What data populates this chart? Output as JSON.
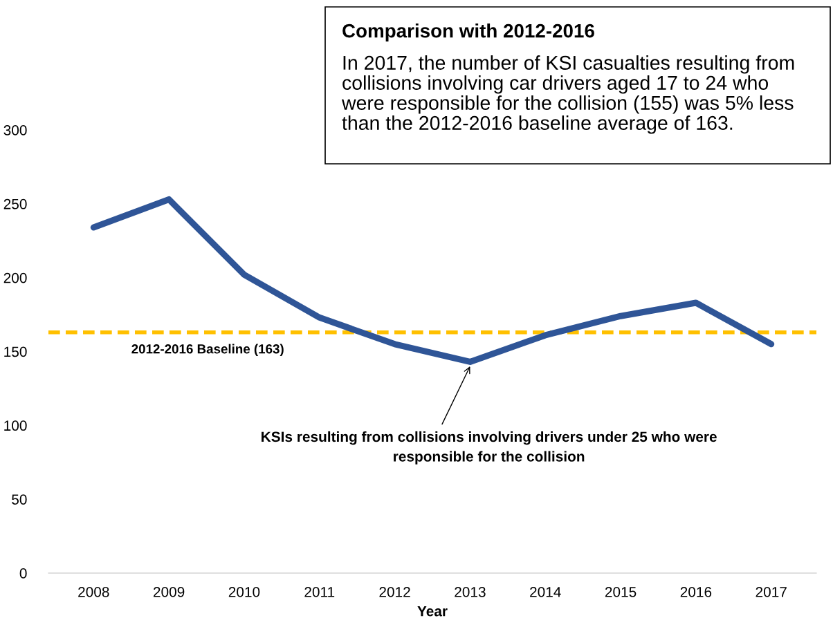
{
  "chart_data": {
    "type": "line",
    "categories": [
      "2008",
      "2009",
      "2010",
      "2011",
      "2012",
      "2013",
      "2014",
      "2015",
      "2016",
      "2017"
    ],
    "series": [
      {
        "color": "#2f5597",
        "values": [
          234,
          253,
          202,
          173,
          155,
          143,
          161,
          174,
          183,
          155
        ]
      }
    ],
    "xlabel": "Year",
    "ylim": [
      0,
      300
    ],
    "yticks": [
      0,
      50,
      100,
      150,
      200,
      250,
      300
    ],
    "grid": false,
    "marker": "none",
    "line_style": "solid",
    "ref_lines": [
      {
        "axis": "y",
        "value": 163,
        "label": "2012-2016 Baseline (163)",
        "color": "#ffc000",
        "line_style": "dashed"
      }
    ],
    "annotations": [
      {
        "text": "KSIs resulting from collisions involving drivers under 25 who were\nresponsible for the collision",
        "x": "2013",
        "y": 143
      },
      "Comparison with 2012-2016",
      "In 2017, the number of KSI casualties resulting from\ncollisions involving car drivers aged 17 to 24 who\nwere responsible for the collision (155) was 5% less\nthan the 2012-2016 baseline average of 163."
    ]
  }
}
